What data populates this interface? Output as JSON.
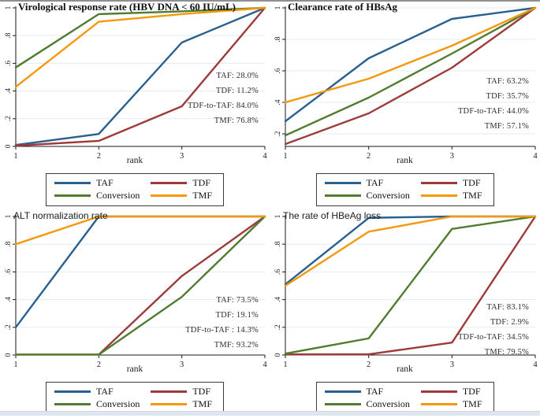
{
  "figure": {
    "x_axis_label": "rank",
    "legend_labels": [
      "TAF",
      "TDF",
      "Conversion",
      "TMF"
    ],
    "colors": {
      "taf_blue": "#2a608f",
      "tdf_red": "#9e3a3a",
      "conversion_green": "#507c2f",
      "tmf_orange": "#f4980e",
      "gridline": "#e3ecf2",
      "axis": "#1a1a1a"
    }
  },
  "chart_data": [
    {
      "type": "line",
      "title": "Virological response rate (HBV DNA < 60 IU/mL)",
      "xlabel": "rank",
      "x": [
        1,
        2,
        3,
        4
      ],
      "ylim": [
        0,
        1
      ],
      "yticks": [
        "0",
        ".2",
        ".4",
        ".6",
        ".8",
        "1"
      ],
      "ytick_values": [
        0,
        0.2,
        0.4,
        0.6,
        0.8,
        1
      ],
      "grid": true,
      "legend_position": "bottom",
      "series": [
        {
          "name": "TAF",
          "color": "#2a608f",
          "values": [
            0.01,
            0.09,
            0.75,
            1
          ]
        },
        {
          "name": "TDF",
          "color": "#9e3a3a",
          "values": [
            0.005,
            0.04,
            0.29,
            1
          ]
        },
        {
          "name": "Conversion",
          "color": "#507c2f",
          "values": [
            0.57,
            0.955,
            0.975,
            1
          ]
        },
        {
          "name": "TMF",
          "color": "#f4980e",
          "values": [
            0.43,
            0.9,
            0.955,
            1
          ]
        }
      ],
      "annotations": [
        "TAF: 28.0%",
        "TDF: 11.2%",
        "TDF-to-TAF: 84.0%",
        "TMF: 76.8%"
      ]
    },
    {
      "type": "line",
      "title": "Clearance rate of HBsAg",
      "xlabel": "rank",
      "x": [
        1,
        2,
        3,
        4
      ],
      "ylim": [
        0.12,
        1
      ],
      "yticks": [
        ".2",
        ".4",
        ".6",
        ".8",
        "1"
      ],
      "ytick_values": [
        0.2,
        0.4,
        0.6,
        0.8,
        1
      ],
      "grid": true,
      "legend_position": "bottom",
      "series": [
        {
          "name": "TAF",
          "color": "#2a608f",
          "values": [
            0.28,
            0.68,
            0.93,
            1
          ]
        },
        {
          "name": "TDF",
          "color": "#9e3a3a",
          "values": [
            0.135,
            0.33,
            0.62,
            1
          ]
        },
        {
          "name": "Conversion",
          "color": "#507c2f",
          "values": [
            0.19,
            0.43,
            0.71,
            1
          ]
        },
        {
          "name": "TMF",
          "color": "#f4980e",
          "values": [
            0.4,
            0.55,
            0.76,
            1
          ]
        }
      ],
      "annotations": [
        "TAF: 63.2%",
        "TDF: 35.7%",
        "TDF-to-TAF: 44.0%",
        "TMF: 57.1%"
      ]
    },
    {
      "type": "line",
      "title": "ALT normalization rate",
      "xlabel": "rank",
      "x": [
        1,
        2,
        3,
        4
      ],
      "ylim": [
        0,
        1
      ],
      "yticks": [
        "0",
        ".2",
        ".4",
        ".6",
        ".8",
        "1"
      ],
      "ytick_values": [
        0,
        0.2,
        0.4,
        0.6,
        0.8,
        1
      ],
      "grid": true,
      "legend_position": "bottom",
      "series": [
        {
          "name": "TAF",
          "color": "#2a608f",
          "values": [
            0.2,
            1,
            1,
            1
          ]
        },
        {
          "name": "TDF",
          "color": "#9e3a3a",
          "values": [
            0.003,
            0.003,
            0.57,
            1
          ]
        },
        {
          "name": "Conversion",
          "color": "#507c2f",
          "values": [
            0.003,
            0.003,
            0.42,
            1
          ]
        },
        {
          "name": "TMF",
          "color": "#f4980e",
          "values": [
            0.8,
            1,
            1,
            1
          ]
        }
      ],
      "annotations": [
        "TAF: 73.5%",
        "TDF: 19.1%",
        "TDF-to-TAF : 14.3%",
        "TMF: 93.2%"
      ]
    },
    {
      "type": "line",
      "title": "The rate of HBeAg loss",
      "xlabel": "rank",
      "x": [
        1,
        2,
        3,
        4
      ],
      "ylim": [
        0,
        1
      ],
      "yticks": [
        "0",
        ".2",
        ".4",
        ".6",
        ".8",
        "1"
      ],
      "ytick_values": [
        0,
        0.2,
        0.4,
        0.6,
        0.8,
        1
      ],
      "grid": true,
      "legend_position": "bottom",
      "series": [
        {
          "name": "TAF",
          "color": "#2a608f",
          "values": [
            0.51,
            0.99,
            1,
            1
          ]
        },
        {
          "name": "TDF",
          "color": "#9e3a3a",
          "values": [
            0.005,
            0.005,
            0.09,
            1
          ]
        },
        {
          "name": "Conversion",
          "color": "#507c2f",
          "values": [
            0.01,
            0.12,
            0.91,
            1
          ]
        },
        {
          "name": "TMF",
          "color": "#f4980e",
          "values": [
            0.5,
            0.89,
            1,
            1
          ]
        }
      ],
      "annotations": [
        "TAF: 83.1%",
        "TDF: 2.9%",
        "TDF-to-TAF: 34.5%",
        "TMF: 79.5%"
      ]
    }
  ]
}
